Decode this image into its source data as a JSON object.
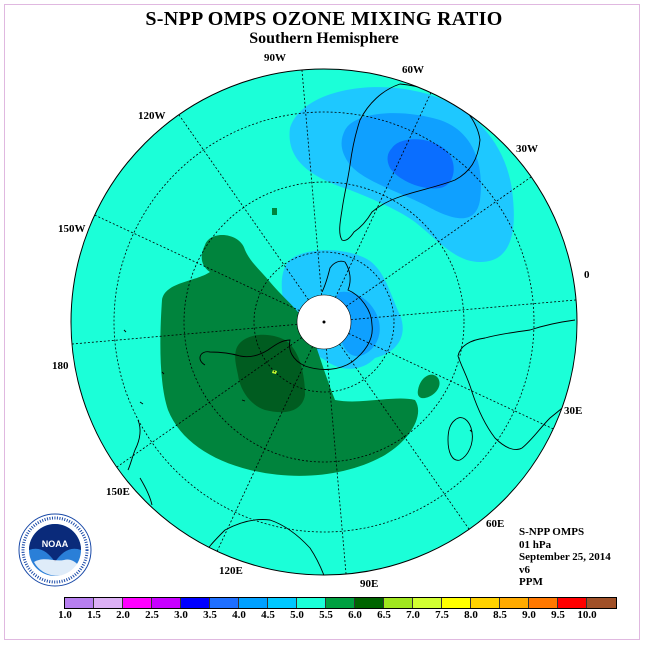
{
  "title": "S-NPP OMPS OZONE MIXING RATIO",
  "subtitle": "Southern Hemisphere",
  "longitude_labels": [
    "90W",
    "60W",
    "120W",
    "30W",
    "150W",
    "0",
    "180",
    "30E",
    "150E",
    "60E",
    "120E",
    "90E"
  ],
  "info": {
    "instrument": "S-NPP OMPS",
    "level": "01 hPa",
    "date": "September 25, 2014",
    "version": "v6",
    "units": "PPM"
  },
  "logo": {
    "text": "NOAA",
    "ring_text": "NATIONAL OCEANIC AND ATMOSPHERIC ADMINISTRATION · U.S. DEPARTMENT OF COMMERCE"
  },
  "colorbar": {
    "ticks": [
      "1.0",
      "1.5",
      "2.0",
      "2.5",
      "3.0",
      "3.5",
      "4.0",
      "4.5",
      "5.0",
      "5.5",
      "6.0",
      "6.5",
      "7.0",
      "7.5",
      "8.0",
      "8.5",
      "9.0",
      "9.5",
      "10.0"
    ],
    "colors": [
      "#b77ff0",
      "#dcb0f5",
      "#ff00ff",
      "#c800ff",
      "#0000ff",
      "#1e6fff",
      "#00a0ff",
      "#00c8ff",
      "#1bffd8",
      "#00a040",
      "#006400",
      "#a0e61e",
      "#d2ff32",
      "#ffff00",
      "#ffd200",
      "#ffaa00",
      "#ff7800",
      "#ff0000",
      "#a05028"
    ]
  },
  "colors": {
    "background_level": "#1bffd8",
    "light_blue": "#1ec8ff",
    "mid_blue": "#0fa0ff",
    "dark_blue": "#0a6eff",
    "green": "#00843d",
    "dark_green": "#005c20",
    "yellow_green": "#c8ff32"
  }
}
